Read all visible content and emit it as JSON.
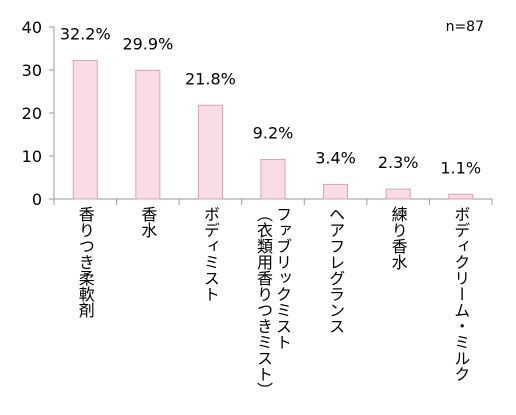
{
  "chart_data": {
    "type": "bar",
    "categories": [
      "香りつき柔軟剤",
      "香水",
      "ボディミスト",
      "ファブリックミスト\n（衣類用香りつきミスト）",
      "ヘアフレグランス",
      "練り香水",
      "ボディクリーム・ミルク"
    ],
    "values": [
      32.2,
      29.9,
      21.8,
      9.2,
      3.4,
      2.3,
      1.1
    ],
    "data_labels": [
      "32.2%",
      "29.9%",
      "21.8%",
      "9.2%",
      "3.4%",
      "2.3%",
      "1.1%"
    ],
    "yticks": [
      "0",
      "10",
      "20",
      "30",
      "40"
    ],
    "ylim": [
      0,
      40
    ],
    "sample_size": "n=87",
    "bar_fill": "#fadce6",
    "bar_stroke": "#d9a0b4",
    "axis_color": "#9a9a9a",
    "grid": false
  }
}
